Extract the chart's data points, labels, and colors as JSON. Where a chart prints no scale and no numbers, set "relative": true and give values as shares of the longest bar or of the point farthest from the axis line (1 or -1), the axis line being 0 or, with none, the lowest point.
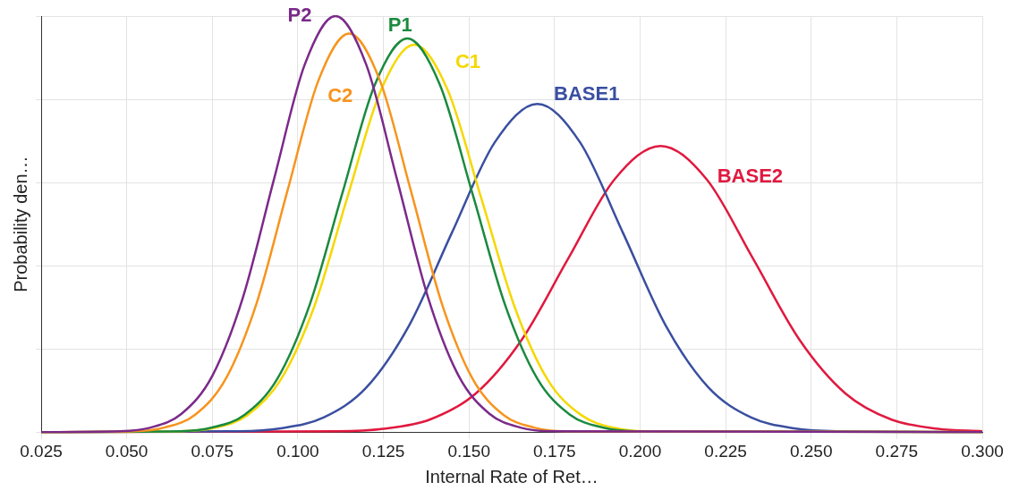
{
  "chart_data": {
    "type": "line",
    "relative": true,
    "xlabel": "Internal Rate of Ret…",
    "ylabel": "Probability den…",
    "xlim": [
      0.025,
      0.3
    ],
    "xticks": [
      {
        "value": 0.025,
        "label": "0.025"
      },
      {
        "value": 0.05,
        "label": "0.050"
      },
      {
        "value": 0.075,
        "label": "0.075"
      },
      {
        "value": 0.1,
        "label": "0.100"
      },
      {
        "value": 0.125,
        "label": "0.125"
      },
      {
        "value": 0.15,
        "label": "0.150"
      },
      {
        "value": 0.175,
        "label": "0.175"
      },
      {
        "value": 0.2,
        "label": "0.200"
      },
      {
        "value": 0.225,
        "label": "0.225"
      },
      {
        "value": 0.25,
        "label": "0.250"
      },
      {
        "value": 0.275,
        "label": "0.275"
      },
      {
        "value": 0.3,
        "label": "0.300"
      }
    ],
    "grid": true,
    "legend": false,
    "marker": "none",
    "line_style": "solid",
    "series": [
      {
        "name": "P2",
        "color": "#7b2a8a",
        "x": [
          0.025,
          0.048,
          0.057,
          0.066,
          0.075,
          0.084,
          0.093,
          0.102,
          0.111,
          0.12,
          0.129,
          0.138,
          0.147,
          0.156,
          0.165,
          0.174,
          0.3
        ],
        "values": [
          0,
          0.002,
          0.011,
          0.044,
          0.135,
          0.325,
          0.607,
          0.883,
          1,
          0.883,
          0.607,
          0.325,
          0.135,
          0.044,
          0.011,
          0.002,
          0
        ]
      },
      {
        "name": "C2",
        "color": "#f7941d",
        "x": [
          0.025,
          0.052,
          0.061,
          0.07,
          0.079,
          0.088,
          0.097,
          0.106,
          0.115,
          0.124,
          0.133,
          0.142,
          0.151,
          0.16,
          0.169,
          0.178,
          0.3
        ],
        "values": [
          0,
          0.002,
          0.011,
          0.042,
          0.129,
          0.311,
          0.581,
          0.845,
          0.958,
          0.845,
          0.581,
          0.311,
          0.129,
          0.042,
          0.011,
          0.002,
          0
        ]
      },
      {
        "name": "P1",
        "color": "#1a8a3e",
        "x": [
          0.025,
          0.0655,
          0.075,
          0.0845,
          0.094,
          0.1035,
          0.113,
          0.1225,
          0.132,
          0.1415,
          0.151,
          0.1605,
          0.17,
          0.1795,
          0.189,
          0.1985,
          0.3
        ],
        "values": [
          0,
          0.002,
          0.011,
          0.042,
          0.128,
          0.307,
          0.574,
          0.835,
          0.946,
          0.835,
          0.574,
          0.307,
          0.128,
          0.042,
          0.011,
          0.002,
          0
        ]
      },
      {
        "name": "C1",
        "color": "#f5d800",
        "x": [
          0.025,
          0.0658,
          0.0755,
          0.0853,
          0.095,
          0.1048,
          0.1145,
          0.1243,
          0.134,
          0.1438,
          0.1535,
          0.1633,
          0.173,
          0.1828,
          0.1925,
          0.2023,
          0.3
        ],
        "values": [
          0,
          0.002,
          0.01,
          0.041,
          0.126,
          0.302,
          0.565,
          0.822,
          0.931,
          0.822,
          0.565,
          0.302,
          0.126,
          0.041,
          0.01,
          0.002,
          0
        ]
      },
      {
        "name": "BASE1",
        "color": "#3a4fa0",
        "x": [
          0.025,
          0.0825,
          0.095,
          0.1075,
          0.12,
          0.1325,
          0.145,
          0.1575,
          0.17,
          0.1825,
          0.195,
          0.2075,
          0.22,
          0.2325,
          0.245,
          0.2575,
          0.3
        ],
        "values": [
          0,
          0.002,
          0.009,
          0.035,
          0.107,
          0.256,
          0.479,
          0.696,
          0.789,
          0.696,
          0.479,
          0.256,
          0.107,
          0.035,
          0.009,
          0.002,
          0
        ]
      },
      {
        "name": "BASE2",
        "color": "#e0193f",
        "x": [
          0.025,
          0.1115,
          0.125,
          0.1385,
          0.152,
          0.1655,
          0.179,
          0.1925,
          0.206,
          0.2195,
          0.233,
          0.2465,
          0.26,
          0.2735,
          0.287,
          0.3
        ],
        "values": [
          0,
          0.002,
          0.008,
          0.03,
          0.093,
          0.223,
          0.417,
          0.607,
          0.688,
          0.607,
          0.417,
          0.223,
          0.093,
          0.03,
          0.008,
          0.002
        ]
      }
    ]
  }
}
